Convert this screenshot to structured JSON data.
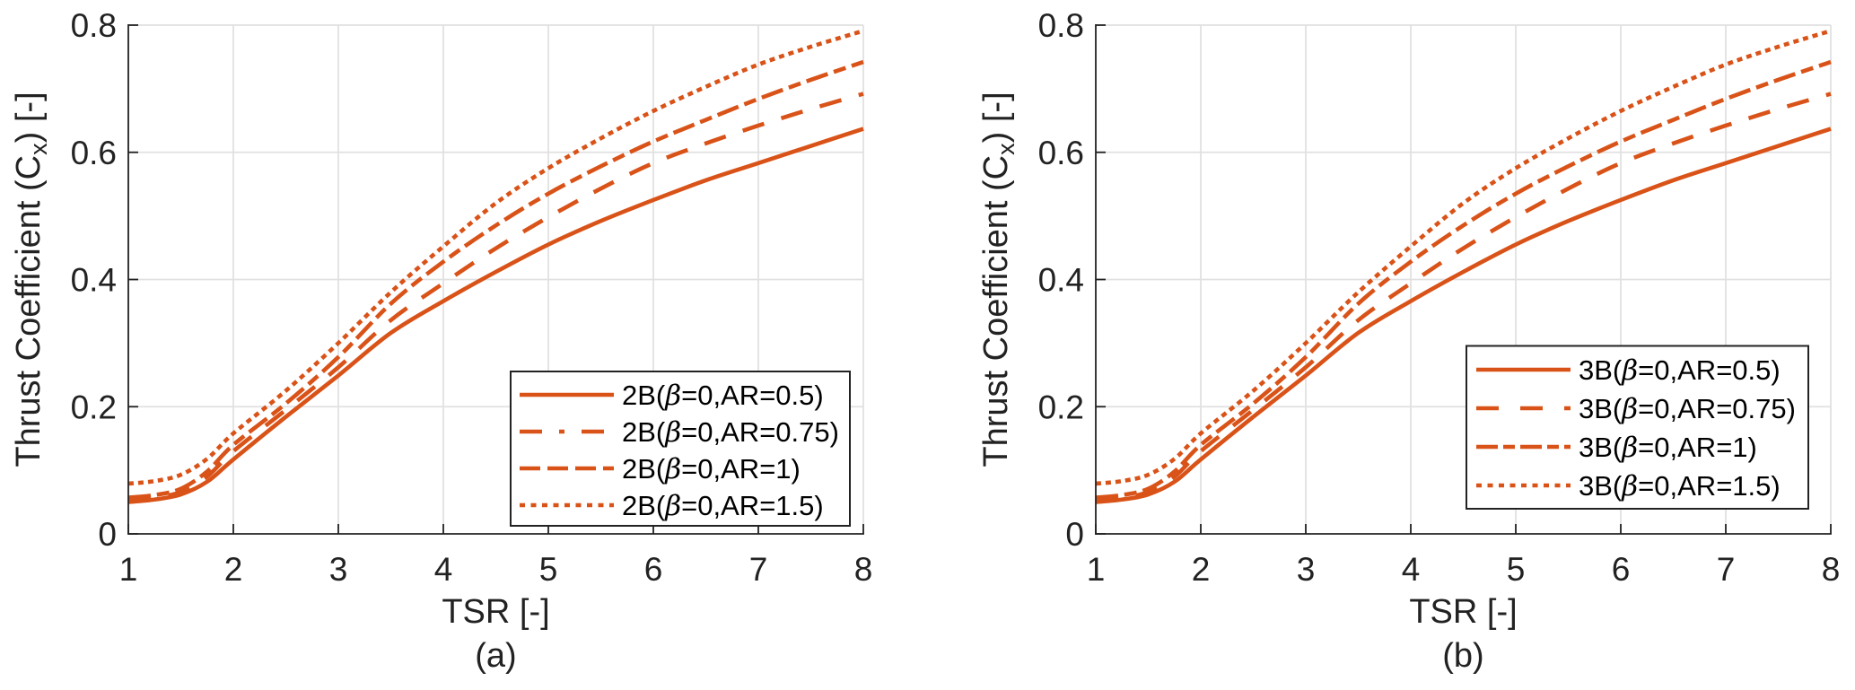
{
  "figure_title": "",
  "accent_color": "#D95319",
  "axis_color": "#222222",
  "grid_color": "#E0E0E0",
  "background_color": "#FFFFFF",
  "chart_data": [
    {
      "id": "a",
      "type": "line",
      "panel_label": "(a)",
      "xlabel": "TSR [-]",
      "ylabel": "Thrust Coefficient (C_x) [-]",
      "xlim": [
        1,
        8
      ],
      "ylim": [
        0,
        0.8
      ],
      "xticks": [
        1,
        2,
        3,
        4,
        5,
        6,
        7,
        8
      ],
      "ytick_labels": [
        "0",
        "0.2",
        "0.4",
        "0.6",
        "0.8"
      ],
      "yticks": [
        0,
        0.2,
        0.4,
        0.6,
        0.8
      ],
      "grid": true,
      "legend_position": "south-east",
      "x": [
        1,
        1.25,
        1.5,
        1.75,
        2,
        2.5,
        3,
        3.5,
        4,
        4.5,
        5,
        5.5,
        6,
        6.5,
        7,
        7.5,
        8
      ],
      "series": [
        {
          "name": "2B(β=0,AR=0.5)",
          "linestyle": "solid",
          "color": "#D95319",
          "y": [
            0.05,
            0.054,
            0.062,
            0.082,
            0.117,
            0.184,
            0.249,
            0.316,
            0.366,
            0.412,
            0.455,
            0.492,
            0.525,
            0.556,
            0.583,
            0.61,
            0.637
          ]
        },
        {
          "name": "2B(β=0,AR=0.75)",
          "linestyle": "dashdot",
          "color": "#D95319",
          "y": [
            0.057,
            0.061,
            0.071,
            0.098,
            0.14,
            0.205,
            0.278,
            0.362,
            0.428,
            0.485,
            0.535,
            0.578,
            0.617,
            0.651,
            0.684,
            0.714,
            0.742
          ]
        },
        {
          "name": "2B(β=0,AR=1)",
          "linestyle": "dashed",
          "color": "#D95319",
          "y": [
            0.053,
            0.057,
            0.066,
            0.09,
            0.13,
            0.195,
            0.262,
            0.336,
            0.394,
            0.449,
            0.498,
            0.543,
            0.583,
            0.614,
            0.642,
            0.668,
            0.692
          ]
        },
        {
          "name": "2B(β=0,AR=1.5)",
          "linestyle": "dotted",
          "color": "#D95319",
          "y": [
            0.079,
            0.083,
            0.093,
            0.118,
            0.158,
            0.225,
            0.3,
            0.38,
            0.452,
            0.52,
            0.575,
            0.622,
            0.665,
            0.703,
            0.738,
            0.766,
            0.791
          ]
        }
      ]
    },
    {
      "id": "b",
      "type": "line",
      "panel_label": "(b)",
      "xlabel": "TSR [-]",
      "ylabel": "Thrust Coefficient (C_x) [-]",
      "xlim": [
        1,
        8
      ],
      "ylim": [
        0,
        0.8
      ],
      "xticks": [
        1,
        2,
        3,
        4,
        5,
        6,
        7,
        8
      ],
      "ytick_labels": [
        "0",
        "0.2",
        "0.4",
        "0.6",
        "0.8"
      ],
      "yticks": [
        0,
        0.2,
        0.4,
        0.6,
        0.8
      ],
      "grid": true,
      "legend_position": "east",
      "x": [
        1,
        1.25,
        1.5,
        1.75,
        2,
        2.5,
        3,
        3.5,
        4,
        4.5,
        5,
        5.5,
        6,
        6.5,
        7,
        7.5,
        8
      ],
      "series": [
        {
          "name": "3B(β=0,AR=0.5)",
          "linestyle": "solid",
          "color": "#D95319",
          "y": [
            0.05,
            0.054,
            0.062,
            0.082,
            0.117,
            0.184,
            0.249,
            0.316,
            0.366,
            0.412,
            0.455,
            0.492,
            0.525,
            0.556,
            0.583,
            0.61,
            0.637
          ]
        },
        {
          "name": "3B(β=0,AR=0.75)",
          "linestyle": "dashed",
          "color": "#D95319",
          "y": [
            0.053,
            0.057,
            0.066,
            0.09,
            0.13,
            0.195,
            0.262,
            0.336,
            0.394,
            0.449,
            0.498,
            0.543,
            0.583,
            0.614,
            0.642,
            0.668,
            0.692
          ]
        },
        {
          "name": "3B(β=0,AR=1)",
          "linestyle": "dashdot",
          "color": "#D95319",
          "y": [
            0.057,
            0.061,
            0.071,
            0.098,
            0.14,
            0.205,
            0.278,
            0.362,
            0.428,
            0.485,
            0.535,
            0.578,
            0.617,
            0.651,
            0.684,
            0.714,
            0.742
          ]
        },
        {
          "name": "3B(β=0,AR=1.5)",
          "linestyle": "dotted",
          "color": "#D95319",
          "y": [
            0.079,
            0.083,
            0.093,
            0.118,
            0.158,
            0.225,
            0.3,
            0.38,
            0.452,
            0.52,
            0.575,
            0.622,
            0.665,
            0.703,
            0.738,
            0.766,
            0.791
          ]
        }
      ]
    }
  ]
}
